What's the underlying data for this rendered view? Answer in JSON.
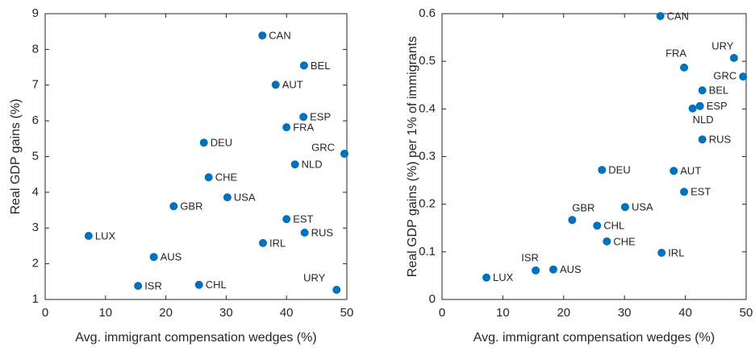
{
  "chart_data": [
    {
      "type": "scatter",
      "xlabel": "Avg. immigrant compensation wedges (%)",
      "ylabel": "Real GDP gains (%)",
      "color": "#0072bd",
      "labels": [
        "CAN",
        "BEL",
        "AUT",
        "ESP",
        "FRA",
        "DEU",
        "GRC",
        "NLD",
        "CHE",
        "USA",
        "GBR",
        "EST",
        "LUX",
        "RUS",
        "IRL",
        "AUS",
        "ISR",
        "CHL",
        "URY"
      ],
      "x": [
        36.0,
        42.9,
        38.2,
        42.8,
        40.0,
        26.3,
        49.6,
        41.4,
        27.1,
        30.2,
        21.3,
        40.0,
        7.2,
        43.0,
        36.1,
        18.0,
        15.4,
        25.5,
        48.3
      ],
      "values": [
        8.39,
        7.55,
        7.01,
        6.11,
        5.82,
        5.39,
        5.08,
        4.78,
        4.42,
        3.86,
        3.61,
        3.25,
        2.78,
        2.87,
        2.58,
        2.19,
        1.38,
        1.41,
        1.27
      ],
      "xlim": [
        0,
        50
      ],
      "xticks": [
        0,
        10,
        20,
        30,
        40,
        50
      ],
      "ylim": [
        1,
        9
      ],
      "yticks": [
        1,
        2,
        3,
        4,
        5,
        6,
        7,
        8,
        9
      ]
    },
    {
      "type": "scatter",
      "xlabel": "Avg. immigrant compensation wedges (%)",
      "ylabel": "Real GDP gains (%) per 1% of immigrants",
      "color": "#0072bd",
      "labels": [
        "CAN",
        "URY",
        "FRA",
        "GRC",
        "BEL",
        "ESP",
        "NLD",
        "RUS",
        "DEU",
        "AUT",
        "EST",
        "USA",
        "GBR",
        "CHL",
        "CHE",
        "IRL",
        "AUS",
        "ISR",
        "LUX"
      ],
      "x": [
        35.9,
        48.0,
        39.8,
        49.5,
        42.8,
        42.4,
        41.2,
        42.8,
        26.3,
        38.1,
        39.8,
        30.1,
        21.4,
        25.5,
        27.1,
        36.1,
        18.3,
        15.4,
        7.3
      ],
      "values": [
        0.595,
        0.507,
        0.487,
        0.468,
        0.439,
        0.406,
        0.401,
        0.336,
        0.272,
        0.27,
        0.226,
        0.194,
        0.167,
        0.155,
        0.122,
        0.098,
        0.063,
        0.061,
        0.046
      ],
      "xlim": [
        0,
        50
      ],
      "xticks": [
        0,
        10,
        20,
        30,
        40,
        50
      ],
      "ylim": [
        0,
        0.6
      ],
      "yticks": [
        0,
        0.1,
        0.2,
        0.3,
        0.4,
        0.5,
        0.6
      ]
    }
  ]
}
